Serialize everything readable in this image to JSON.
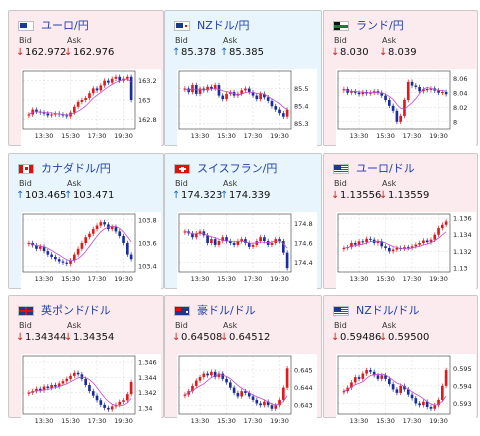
{
  "colors": {
    "up_card_bg": "#e9f5fc",
    "down_card_bg": "#fbebee",
    "candle_up": "#e01a1a",
    "candle_down": "#1a2d9c",
    "ma_line": "#c24ad6"
  },
  "cards": [
    {
      "pair": "ユーロ/円",
      "flag": "eu-flag",
      "trend": "down",
      "bid_label": "Bid",
      "ask_label": "Ask",
      "bid": "162.972",
      "ask": "162.976",
      "bid_dir": "down",
      "ask_dir": "down",
      "chart_data": {
        "type": "candlestick",
        "y_ticks": [
          "163.2",
          "163",
          "162.8"
        ],
        "ylim": [
          162.7,
          163.3
        ],
        "x_ticks": [
          "13:30",
          "15:30",
          "17:30",
          "19:30"
        ],
        "closes": [
          162.85,
          162.9,
          162.88,
          162.87,
          162.86,
          162.84,
          162.85,
          162.86,
          162.85,
          162.84,
          162.83,
          162.87,
          162.93,
          162.98,
          163.0,
          163.02,
          163.07,
          163.12,
          163.1,
          163.15,
          163.2,
          163.18,
          163.22,
          163.24,
          163.2,
          163.22,
          163.24,
          163.0
        ]
      }
    },
    {
      "pair": "NZドル/円",
      "flag": "nz-flag",
      "trend": "up",
      "bid_label": "Bid",
      "ask_label": "Ask",
      "bid": "85.378",
      "ask": "85.385",
      "bid_dir": "up",
      "ask_dir": "up",
      "chart_data": {
        "type": "candlestick",
        "y_ticks": [
          "85.5",
          "85.4",
          "85.3"
        ],
        "ylim": [
          85.27,
          85.6
        ],
        "x_ticks": [
          "13:30",
          "15:30",
          "17:30",
          "19:30"
        ],
        "closes": [
          85.5,
          85.48,
          85.52,
          85.47,
          85.5,
          85.49,
          85.51,
          85.5,
          85.52,
          85.46,
          85.44,
          85.47,
          85.48,
          85.46,
          85.47,
          85.49,
          85.5,
          85.48,
          85.46,
          85.44,
          85.47,
          85.45,
          85.43,
          85.4,
          85.38,
          85.36,
          85.34,
          85.38
        ]
      }
    },
    {
      "pair": "ランド/円",
      "flag": "za-flag",
      "trend": "down",
      "bid_label": "Bid",
      "ask_label": "Ask",
      "bid": "8.030",
      "ask": "8.039",
      "bid_dir": "down",
      "ask_dir": "down",
      "chart_data": {
        "type": "candlestick",
        "y_ticks": [
          "8.06",
          "8.04",
          "8.02",
          "8"
        ],
        "ylim": [
          7.99,
          8.07
        ],
        "x_ticks": [
          "13:30",
          "15:30",
          "17:30",
          "19:30"
        ],
        "closes": [
          8.045,
          8.04,
          8.042,
          8.04,
          8.038,
          8.041,
          8.039,
          8.04,
          8.042,
          8.04,
          8.036,
          8.03,
          8.022,
          8.015,
          8.0,
          8.008,
          8.03,
          8.055,
          8.05,
          8.048,
          8.042,
          8.045,
          8.044,
          8.046,
          8.043,
          8.04,
          8.041,
          8.038
        ]
      }
    },
    {
      "pair": "カナダドル/円",
      "flag": "ca-flag",
      "trend": "up",
      "bid_label": "Bid",
      "ask_label": "Ask",
      "bid": "103.465",
      "ask": "103.471",
      "bid_dir": "up",
      "ask_dir": "up",
      "chart_data": {
        "type": "candlestick",
        "y_ticks": [
          "103.8",
          "103.6",
          "103.4"
        ],
        "ylim": [
          103.35,
          103.85
        ],
        "x_ticks": [
          "13:30",
          "15:30",
          "17:30",
          "19:30"
        ],
        "closes": [
          103.6,
          103.58,
          103.55,
          103.57,
          103.53,
          103.5,
          103.48,
          103.46,
          103.44,
          103.43,
          103.42,
          103.45,
          103.5,
          103.55,
          103.6,
          103.65,
          103.68,
          103.72,
          103.75,
          103.78,
          103.76,
          103.72,
          103.74,
          103.7,
          103.66,
          103.6,
          103.5,
          103.46
        ]
      }
    },
    {
      "pair": "スイスフラン/円",
      "flag": "ch-flag",
      "trend": "up",
      "bid_label": "Bid",
      "ask_label": "Ask",
      "bid": "174.323",
      "ask": "174.339",
      "bid_dir": "up",
      "ask_dir": "up",
      "chart_data": {
        "type": "candlestick",
        "y_ticks": [
          "174.8",
          "174.6",
          "174.4"
        ],
        "ylim": [
          174.3,
          174.9
        ],
        "x_ticks": [
          "13:30",
          "15:30",
          "17:30",
          "19:30"
        ],
        "closes": [
          174.72,
          174.7,
          174.66,
          174.7,
          174.72,
          174.68,
          174.6,
          174.64,
          174.58,
          174.62,
          174.66,
          174.62,
          174.6,
          174.58,
          174.62,
          174.64,
          174.6,
          174.56,
          174.58,
          174.62,
          174.66,
          174.62,
          174.58,
          174.6,
          174.64,
          174.62,
          174.5,
          174.34
        ]
      }
    },
    {
      "pair": "ユーロ/ドル",
      "flag": "us-flag",
      "trend": "down",
      "bid_label": "Bid",
      "ask_label": "Ask",
      "bid": "1.13556",
      "ask": "1.13559",
      "bid_dir": "down",
      "ask_dir": "down",
      "chart_data": {
        "type": "candlestick",
        "y_ticks": [
          "1.136",
          "1.134",
          "1.132",
          "1.13"
        ],
        "ylim": [
          1.1295,
          1.1365
        ],
        "x_ticks": [
          "13:30",
          "15:30",
          "17:30",
          "19:30"
        ],
        "closes": [
          1.1324,
          1.1325,
          1.133,
          1.1328,
          1.1332,
          1.1331,
          1.1335,
          1.1334,
          1.133,
          1.1332,
          1.1326,
          1.1324,
          1.132,
          1.1322,
          1.1324,
          1.1323,
          1.1325,
          1.1324,
          1.1326,
          1.1328,
          1.133,
          1.1333,
          1.1331,
          1.1334,
          1.134,
          1.1348,
          1.1352,
          1.1356
        ]
      }
    },
    {
      "pair": "英ポンド/ドル",
      "flag": "gb-flag",
      "trend": "down",
      "bid_label": "Bid",
      "ask_label": "Ask",
      "bid": "1.34344",
      "ask": "1.34354",
      "bid_dir": "down",
      "ask_dir": "down",
      "chart_data": {
        "type": "candlestick",
        "y_ticks": [
          "1.346",
          "1.344",
          "1.342",
          "1.34"
        ],
        "ylim": [
          1.3392,
          1.3468
        ],
        "x_ticks": [
          "13:30",
          "15:30",
          "17:30",
          "19:30"
        ],
        "closes": [
          1.342,
          1.3422,
          1.3425,
          1.3423,
          1.3428,
          1.3426,
          1.343,
          1.3428,
          1.3432,
          1.3435,
          1.3438,
          1.3442,
          1.3446,
          1.3444,
          1.3438,
          1.343,
          1.3422,
          1.3416,
          1.341,
          1.3404,
          1.34,
          1.3398,
          1.3402,
          1.3404,
          1.3408,
          1.341,
          1.3418,
          1.3434
        ]
      }
    },
    {
      "pair": "豪ドル/ドル",
      "flag": "au-flag",
      "trend": "down",
      "bid_label": "Bid",
      "ask_label": "Ask",
      "bid": "0.64508",
      "ask": "0.64512",
      "bid_dir": "down",
      "ask_dir": "down",
      "chart_data": {
        "type": "candlestick",
        "y_ticks": [
          "0.645",
          "0.644",
          "0.643"
        ],
        "ylim": [
          0.6425,
          0.6458
        ],
        "x_ticks": [
          "13:30",
          "15:30",
          "17:30",
          "19:30"
        ],
        "closes": [
          0.6436,
          0.6438,
          0.6441,
          0.6444,
          0.6446,
          0.6448,
          0.6447,
          0.6449,
          0.6446,
          0.6448,
          0.6445,
          0.6443,
          0.644,
          0.6437,
          0.6435,
          0.6438,
          0.6437,
          0.6435,
          0.6433,
          0.6431,
          0.643,
          0.6432,
          0.643,
          0.6428,
          0.643,
          0.6433,
          0.644,
          0.6451
        ]
      }
    },
    {
      "pair": "NZドル/ドル",
      "flag": "us-flag",
      "trend": "down",
      "bid_label": "Bid",
      "ask_label": "Ask",
      "bid": "0.59486",
      "ask": "0.59500",
      "bid_dir": "down",
      "ask_dir": "down",
      "chart_data": {
        "type": "candlestick",
        "y_ticks": [
          "0.595",
          "0.594",
          "0.593"
        ],
        "ylim": [
          0.5924,
          0.5957
        ],
        "x_ticks": [
          "13:30",
          "15:30",
          "17:30",
          "19:30"
        ],
        "closes": [
          0.5937,
          0.5939,
          0.5942,
          0.5945,
          0.5944,
          0.5947,
          0.5949,
          0.5948,
          0.5946,
          0.5944,
          0.5946,
          0.5944,
          0.5941,
          0.5938,
          0.5936,
          0.594,
          0.5938,
          0.5935,
          0.5933,
          0.593,
          0.5929,
          0.5931,
          0.5928,
          0.5927,
          0.5929,
          0.5932,
          0.594,
          0.5949
        ]
      }
    }
  ]
}
